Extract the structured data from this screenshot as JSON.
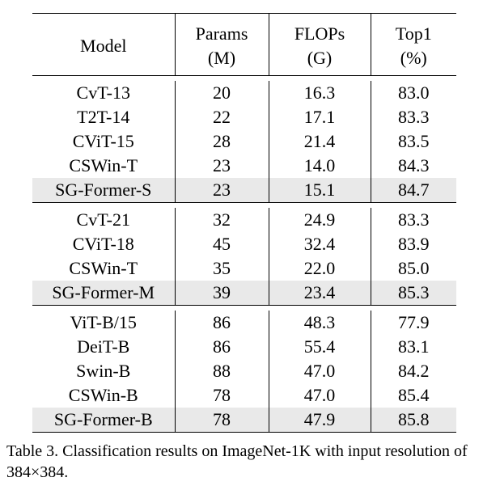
{
  "table": {
    "headers": [
      {
        "line1": "Model",
        "line2": ""
      },
      {
        "line1": "Params",
        "line2": "(M)"
      },
      {
        "line1": "FLOPs",
        "line2": "(G)"
      },
      {
        "line1": "Top1",
        "line2": "(%)"
      }
    ],
    "groups": [
      {
        "rows": [
          {
            "model": "CvT-13",
            "params": "20",
            "flops": "16.3",
            "top1": "83.0",
            "highlight": false
          },
          {
            "model": "T2T-14",
            "params": "22",
            "flops": "17.1",
            "top1": "83.3",
            "highlight": false
          },
          {
            "model": "CViT-15",
            "params": "28",
            "flops": "21.4",
            "top1": "83.5",
            "highlight": false
          },
          {
            "model": "CSWin-T",
            "params": "23",
            "flops": "14.0",
            "top1": "84.3",
            "highlight": false
          },
          {
            "model": "SG-Former-S",
            "params": "23",
            "flops": "15.1",
            "top1": "84.7",
            "highlight": true
          }
        ]
      },
      {
        "rows": [
          {
            "model": "CvT-21",
            "params": "32",
            "flops": "24.9",
            "top1": "83.3",
            "highlight": false
          },
          {
            "model": "CViT-18",
            "params": "45",
            "flops": "32.4",
            "top1": "83.9",
            "highlight": false
          },
          {
            "model": "CSWin-T",
            "params": "35",
            "flops": "22.0",
            "top1": "85.0",
            "highlight": false
          },
          {
            "model": "SG-Former-M",
            "params": "39",
            "flops": "23.4",
            "top1": "85.3",
            "highlight": true
          }
        ]
      },
      {
        "rows": [
          {
            "model": "ViT-B/15",
            "params": "86",
            "flops": "48.3",
            "top1": "77.9",
            "highlight": false
          },
          {
            "model": "DeiT-B",
            "params": "86",
            "flops": "55.4",
            "top1": "83.1",
            "highlight": false
          },
          {
            "model": "Swin-B",
            "params": "88",
            "flops": "47.0",
            "top1": "84.2",
            "highlight": false
          },
          {
            "model": "CSWin-B",
            "params": "78",
            "flops": "47.0",
            "top1": "85.4",
            "highlight": false
          },
          {
            "model": "SG-Former-B",
            "params": "78",
            "flops": "47.9",
            "top1": "85.8",
            "highlight": true
          }
        ]
      }
    ]
  },
  "caption": {
    "text": "Table 3. Classification results on ImageNet-1K with input resolution of 384×384."
  }
}
